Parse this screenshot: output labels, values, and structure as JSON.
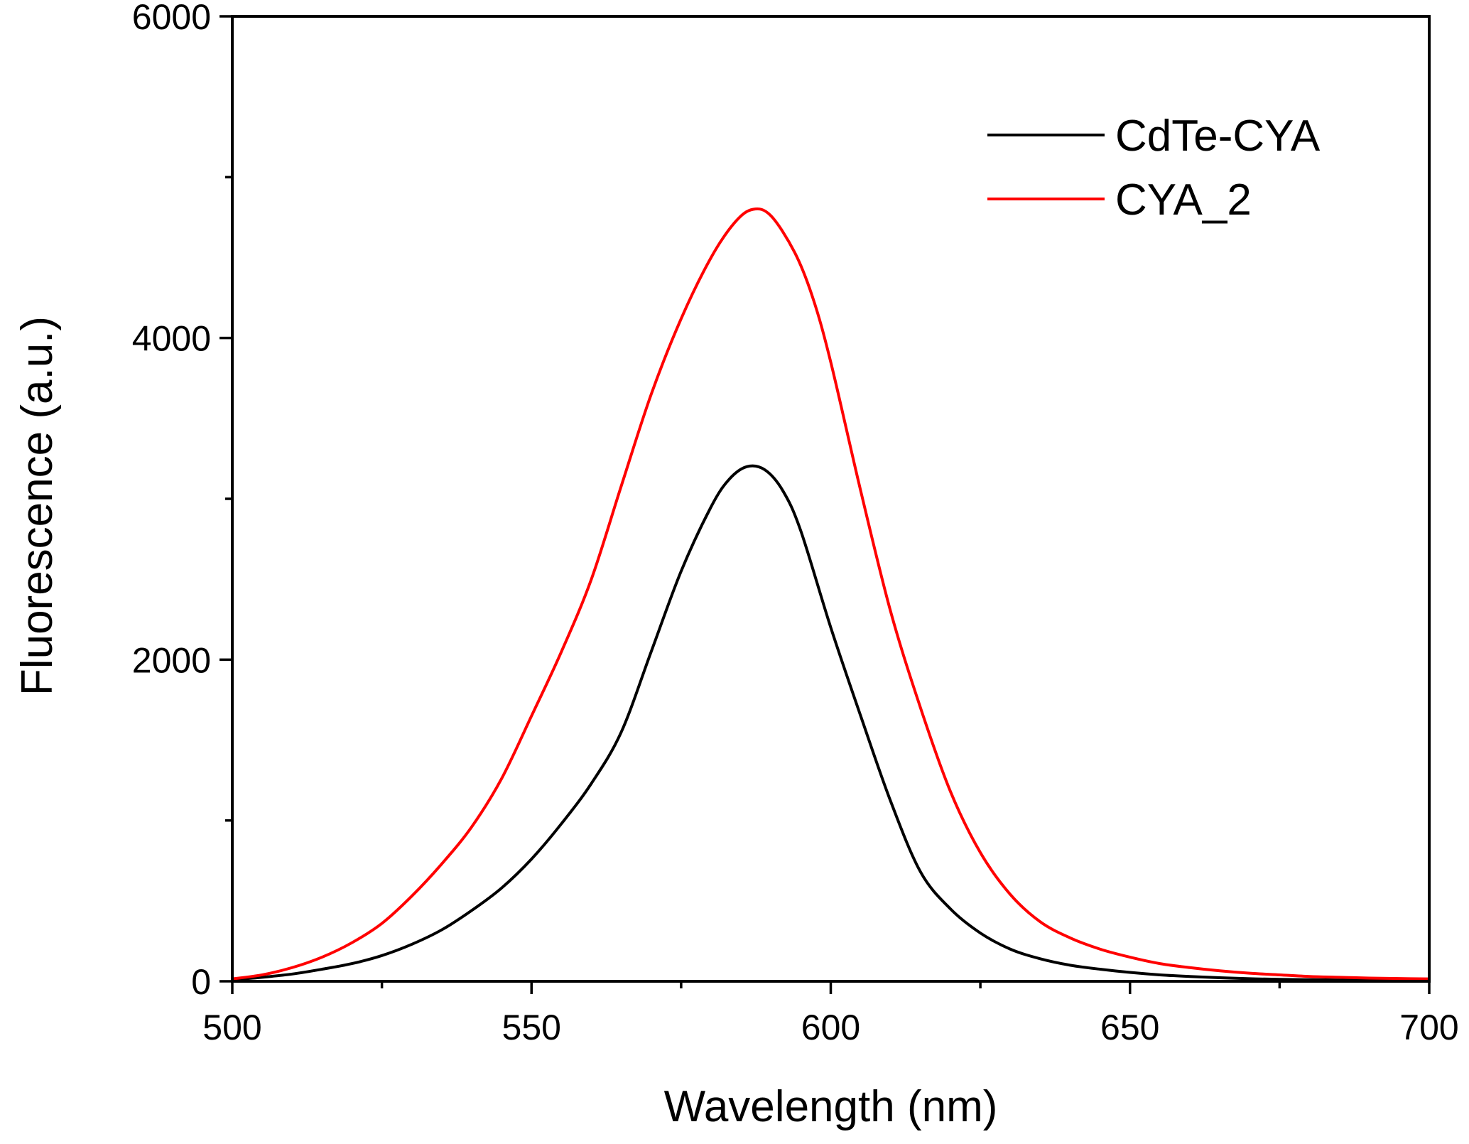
{
  "chart_data": {
    "type": "line",
    "title": "",
    "xlabel": "Wavelength (nm)",
    "ylabel": "Fluorescence (a.u.)",
    "xlim": [
      500,
      700
    ],
    "ylim": [
      0,
      6000
    ],
    "x_major_ticks": [
      500,
      550,
      600,
      650,
      700
    ],
    "x_minor_ticks": [
      525,
      575,
      625,
      675
    ],
    "y_major_ticks": [
      0,
      2000,
      4000,
      6000
    ],
    "y_minor_ticks": [
      1000,
      3000,
      5000
    ],
    "x_tick_labels": [
      "500",
      "550",
      "600",
      "650",
      "700"
    ],
    "y_tick_labels": [
      "0",
      "2000",
      "4000",
      "6000"
    ],
    "grid": false,
    "legend_position": "top-right",
    "series": [
      {
        "name": "CdTe-CYA",
        "color": "#000000",
        "x": [
          500,
          505,
          510,
          515,
          520,
          525,
          530,
          535,
          540,
          545,
          550,
          555,
          560,
          565,
          570,
          575,
          580,
          583,
          586,
          589,
          592,
          595,
          600,
          605,
          610,
          615,
          620,
          625,
          630,
          635,
          640,
          645,
          650,
          655,
          660,
          665,
          670,
          675,
          680,
          685,
          690,
          695,
          700
        ],
        "y": [
          10,
          25,
          45,
          75,
          110,
          160,
          230,
          320,
          440,
          580,
          760,
          980,
          1230,
          1550,
          2050,
          2550,
          2950,
          3120,
          3200,
          3180,
          3050,
          2800,
          2200,
          1650,
          1120,
          680,
          450,
          300,
          200,
          140,
          100,
          75,
          55,
          40,
          30,
          22,
          16,
          12,
          10,
          8,
          6,
          5,
          4
        ]
      },
      {
        "name": "CYA_2",
        "color": "#ff0000",
        "x": [
          500,
          505,
          510,
          515,
          520,
          525,
          530,
          535,
          540,
          545,
          550,
          555,
          560,
          565,
          570,
          575,
          580,
          584,
          587,
          590,
          594,
          597,
          600,
          605,
          610,
          615,
          620,
          625,
          630,
          635,
          640,
          645,
          650,
          655,
          660,
          665,
          670,
          675,
          680,
          685,
          690,
          695,
          700
        ],
        "y": [
          15,
          40,
          85,
          150,
          240,
          360,
          530,
          730,
          960,
          1260,
          1650,
          2050,
          2500,
          3080,
          3650,
          4120,
          4500,
          4720,
          4800,
          4760,
          4530,
          4250,
          3850,
          3050,
          2300,
          1700,
          1180,
          800,
          540,
          370,
          270,
          200,
          150,
          110,
          85,
          65,
          50,
          40,
          30,
          25,
          20,
          17,
          15
        ]
      },
      {
        "name": "",
        "color": "#ff0000",
        "x": [
          551,
          700
        ],
        "y": [
          0,
          0
        ],
        "in_legend": false
      }
    ]
  }
}
